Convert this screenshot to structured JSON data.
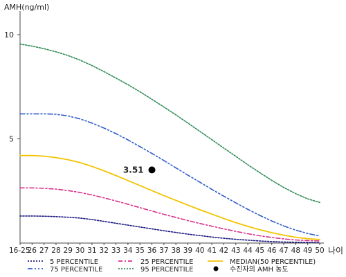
{
  "chart_data": {
    "type": "line",
    "ylabel": "AMH(ng/ml)",
    "xlabel": "나이",
    "ylim": [
      0,
      11
    ],
    "yticks": [
      5,
      10
    ],
    "x": [
      "16-25",
      "26",
      "27",
      "28",
      "29",
      "30",
      "31",
      "32",
      "33",
      "34",
      "35",
      "36",
      "37",
      "38",
      "39",
      "40",
      "41",
      "42",
      "43",
      "44",
      "45",
      "46",
      "47",
      "48",
      "49",
      "50"
    ],
    "series": [
      {
        "name": "5 PERCENTILE",
        "color": "#1a1a80",
        "dash": "dot",
        "values": [
          1.3,
          1.3,
          1.29,
          1.27,
          1.24,
          1.2,
          1.13,
          1.04,
          0.95,
          0.86,
          0.77,
          0.68,
          0.59,
          0.51,
          0.43,
          0.36,
          0.29,
          0.23,
          0.18,
          0.14,
          0.1,
          0.07,
          0.05,
          0.04,
          0.03,
          0.02
        ]
      },
      {
        "name": "25 PERCENTILE",
        "color": "#d8308a",
        "dash": "dashdot",
        "values": [
          2.65,
          2.65,
          2.63,
          2.59,
          2.52,
          2.43,
          2.31,
          2.17,
          2.02,
          1.86,
          1.7,
          1.54,
          1.38,
          1.23,
          1.08,
          0.94,
          0.81,
          0.68,
          0.56,
          0.45,
          0.35,
          0.27,
          0.2,
          0.15,
          0.12,
          0.1
        ]
      },
      {
        "name": "MEDIAN(50 PERCENTILE)",
        "color": "#f2c300",
        "dash": "solid",
        "values": [
          4.2,
          4.2,
          4.17,
          4.1,
          4.0,
          3.86,
          3.68,
          3.47,
          3.24,
          3.0,
          2.76,
          2.52,
          2.28,
          2.05,
          1.82,
          1.6,
          1.39,
          1.18,
          0.98,
          0.8,
          0.64,
          0.5,
          0.38,
          0.28,
          0.21,
          0.17
        ]
      },
      {
        "name": "75 PERCENTILE",
        "color": "#2f5bc8",
        "dash": "dashdotdot",
        "values": [
          6.2,
          6.2,
          6.2,
          6.18,
          6.1,
          5.96,
          5.76,
          5.52,
          5.25,
          4.95,
          4.63,
          4.3,
          3.96,
          3.61,
          3.26,
          2.92,
          2.58,
          2.25,
          1.93,
          1.62,
          1.33,
          1.06,
          0.82,
          0.62,
          0.46,
          0.34
        ]
      },
      {
        "name": "95 PERCENTILE",
        "color": "#2e8b57",
        "dash": "dot",
        "values": [
          9.55,
          9.45,
          9.33,
          9.18,
          9.0,
          8.78,
          8.52,
          8.23,
          7.92,
          7.6,
          7.26,
          6.9,
          6.53,
          6.15,
          5.76,
          5.36,
          4.96,
          4.56,
          4.16,
          3.76,
          3.38,
          3.01,
          2.67,
          2.37,
          2.12,
          1.95
        ]
      }
    ],
    "points": [
      {
        "name": "수진자의 AMH 농도",
        "x": "36",
        "y": 3.51,
        "label": "3.51",
        "color": "#000000"
      }
    ],
    "legend_position": "bottom",
    "grid": false
  }
}
